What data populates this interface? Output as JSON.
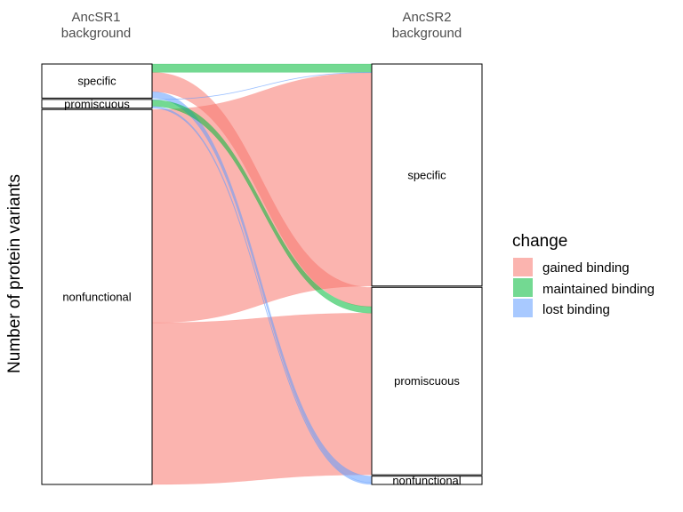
{
  "chart_data": {
    "type": "alluvial",
    "ylabel": "Number of protein variants",
    "axes": [
      {
        "title_line1": "AncSR1",
        "title_line2": "background",
        "strata": [
          "specific",
          "promiscuous",
          "nonfunctional"
        ]
      },
      {
        "title_line1": "AncSR2",
        "title_line2": "background",
        "strata": [
          "specific",
          "promiscuous",
          "nonfunctional"
        ]
      }
    ],
    "legend": {
      "title": "change",
      "placement": "right",
      "entries": [
        {
          "key": "gained",
          "label": "gained binding",
          "color": "#f8766d"
        },
        {
          "key": "maintained",
          "label": "maintained binding",
          "color": "#00ba38"
        },
        {
          "key": "lost",
          "label": "lost binding",
          "color": "#619cff"
        }
      ]
    },
    "flows": [
      {
        "from": "specific",
        "to": "specific",
        "change": "maintained",
        "value": 18
      },
      {
        "from": "specific",
        "to": "promiscuous",
        "change": "gained",
        "value": 42
      },
      {
        "from": "specific",
        "to": "nonfunctional",
        "change": "lost",
        "value": 14
      },
      {
        "from": "promiscuous",
        "to": "specific",
        "change": "lost",
        "value": 1
      },
      {
        "from": "promiscuous",
        "to": "promiscuous",
        "change": "maintained",
        "value": 14
      },
      {
        "from": "promiscuous",
        "to": "nonfunctional",
        "change": "lost",
        "value": 4
      },
      {
        "from": "nonfunctional",
        "to": "specific",
        "change": "gained",
        "value": 463
      },
      {
        "from": "nonfunctional",
        "to": "promiscuous",
        "change": "gained",
        "value": 351
      },
      {
        "from": "nonfunctional",
        "to": "nonfunctional",
        "change": "maintained",
        "value": 0
      }
    ],
    "grid": false
  }
}
